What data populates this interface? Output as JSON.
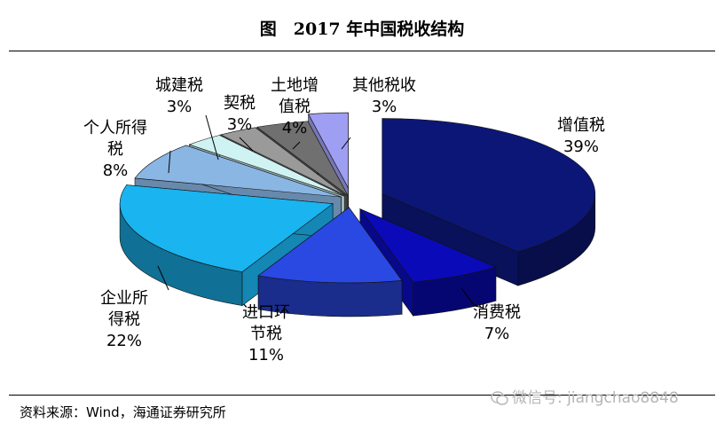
{
  "chart_data": {
    "type": "pie",
    "title": "图　2017 年中国税收结构",
    "slices": [
      {
        "label": "增值税",
        "pct_label": "39%",
        "value": 39,
        "color": "#0b1677"
      },
      {
        "label": "消费税",
        "pct_label": "7%",
        "value": 7,
        "color": "#0a0ab8"
      },
      {
        "label": "进口环节税",
        "pct_label": "11%",
        "value": 11,
        "color": "#2a48e2"
      },
      {
        "label": "企业所得税",
        "pct_label": "22%",
        "value": 22,
        "color": "#1ab4f0"
      },
      {
        "label": "个人所得税",
        "pct_label": "8%",
        "value": 8,
        "color": "#8ab6e4"
      },
      {
        "label": "城建税",
        "pct_label": "3%",
        "value": 3,
        "color": "#cff2f2"
      },
      {
        "label": "契税",
        "pct_label": "3%",
        "value": 3,
        "color": "#9a9a9a"
      },
      {
        "label": "土地增值税",
        "pct_label": "4%",
        "value": 4,
        "color": "#707070"
      },
      {
        "label": "其他税收",
        "pct_label": "3%",
        "value": 3,
        "color": "#9e9ef2"
      }
    ]
  },
  "source": "资料来源：Wind，海通证券研究所",
  "watermark": "微信号: jiangchao8848"
}
